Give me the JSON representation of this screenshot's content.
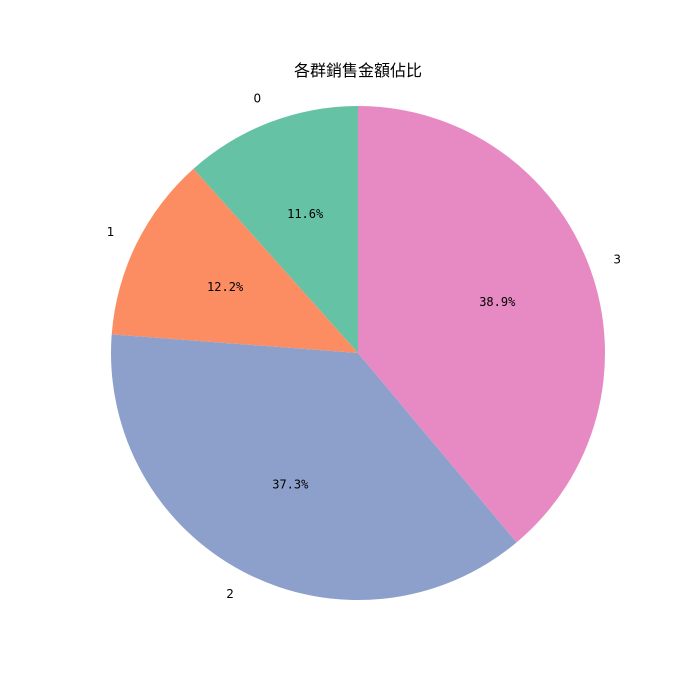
{
  "chart_data": {
    "type": "pie",
    "title": "各群銷售金額佔比",
    "categories": [
      "0",
      "1",
      "2",
      "3"
    ],
    "values": [
      11.6,
      12.2,
      37.3,
      38.9
    ],
    "labels": [
      "11.6%",
      "12.2%",
      "37.3%",
      "38.9%"
    ],
    "colors": [
      "#66c2a5",
      "#fc8d62",
      "#8da0cb",
      "#e78ac3"
    ],
    "start_angle": 90,
    "direction": "counterclockwise"
  }
}
